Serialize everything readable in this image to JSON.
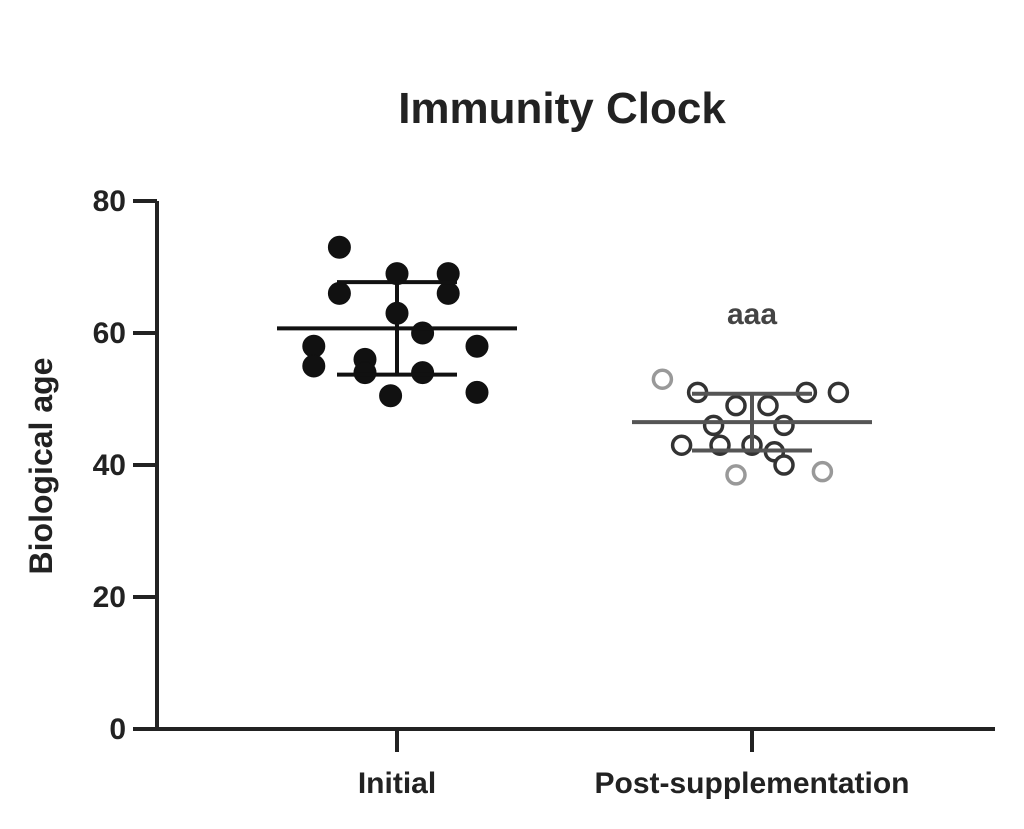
{
  "chart_data": {
    "type": "scatter",
    "title": "Immunity Clock",
    "xlabel": "",
    "ylabel": "Biological age",
    "ylim": [
      0,
      80
    ],
    "yticks": [
      0,
      20,
      40,
      60,
      80
    ],
    "grid": false,
    "categories": [
      "Initial",
      "Post-supplementation"
    ],
    "annotations": [
      {
        "category": "Post-supplementation",
        "text": "aaa"
      }
    ],
    "colors": {
      "initial": "#111111",
      "post_edge": "#333333",
      "post_edge_gray": "#999999",
      "post_fill": "#ffffff",
      "axis": "#222222"
    },
    "series": [
      {
        "category": "Initial",
        "marker": "filled",
        "mean": 60.7,
        "sd": 7.0,
        "points": [
          {
            "x": -0.18,
            "y": 73.0
          },
          {
            "x": -0.18,
            "y": 66.0
          },
          {
            "x": 0.0,
            "y": 69.0
          },
          {
            "x": 0.16,
            "y": 69.0
          },
          {
            "x": 0.16,
            "y": 66.0
          },
          {
            "x": 0.0,
            "y": 63.0
          },
          {
            "x": 0.08,
            "y": 60.0
          },
          {
            "x": -0.26,
            "y": 58.0
          },
          {
            "x": 0.25,
            "y": 58.0
          },
          {
            "x": -0.26,
            "y": 55.0
          },
          {
            "x": -0.1,
            "y": 56.0
          },
          {
            "x": -0.1,
            "y": 54.0
          },
          {
            "x": 0.08,
            "y": 54.0
          },
          {
            "x": -0.02,
            "y": 50.5
          },
          {
            "x": 0.25,
            "y": 51.0
          }
        ]
      },
      {
        "category": "Post-supplementation",
        "marker": "open",
        "mean": 46.5,
        "sd": 4.3,
        "points": [
          {
            "x": -0.28,
            "y": 53.0,
            "gray": true
          },
          {
            "x": -0.17,
            "y": 51.0
          },
          {
            "x": 0.17,
            "y": 51.0
          },
          {
            "x": 0.27,
            "y": 51.0
          },
          {
            "x": -0.05,
            "y": 49.0
          },
          {
            "x": 0.05,
            "y": 49.0
          },
          {
            "x": -0.12,
            "y": 46.0
          },
          {
            "x": 0.1,
            "y": 46.0
          },
          {
            "x": -0.22,
            "y": 43.0
          },
          {
            "x": -0.1,
            "y": 43.0
          },
          {
            "x": 0.0,
            "y": 43.0
          },
          {
            "x": 0.07,
            "y": 42.0
          },
          {
            "x": 0.1,
            "y": 40.0
          },
          {
            "x": -0.05,
            "y": 38.5,
            "gray": true
          },
          {
            "x": 0.22,
            "y": 39.0,
            "gray": true
          }
        ]
      }
    ]
  }
}
